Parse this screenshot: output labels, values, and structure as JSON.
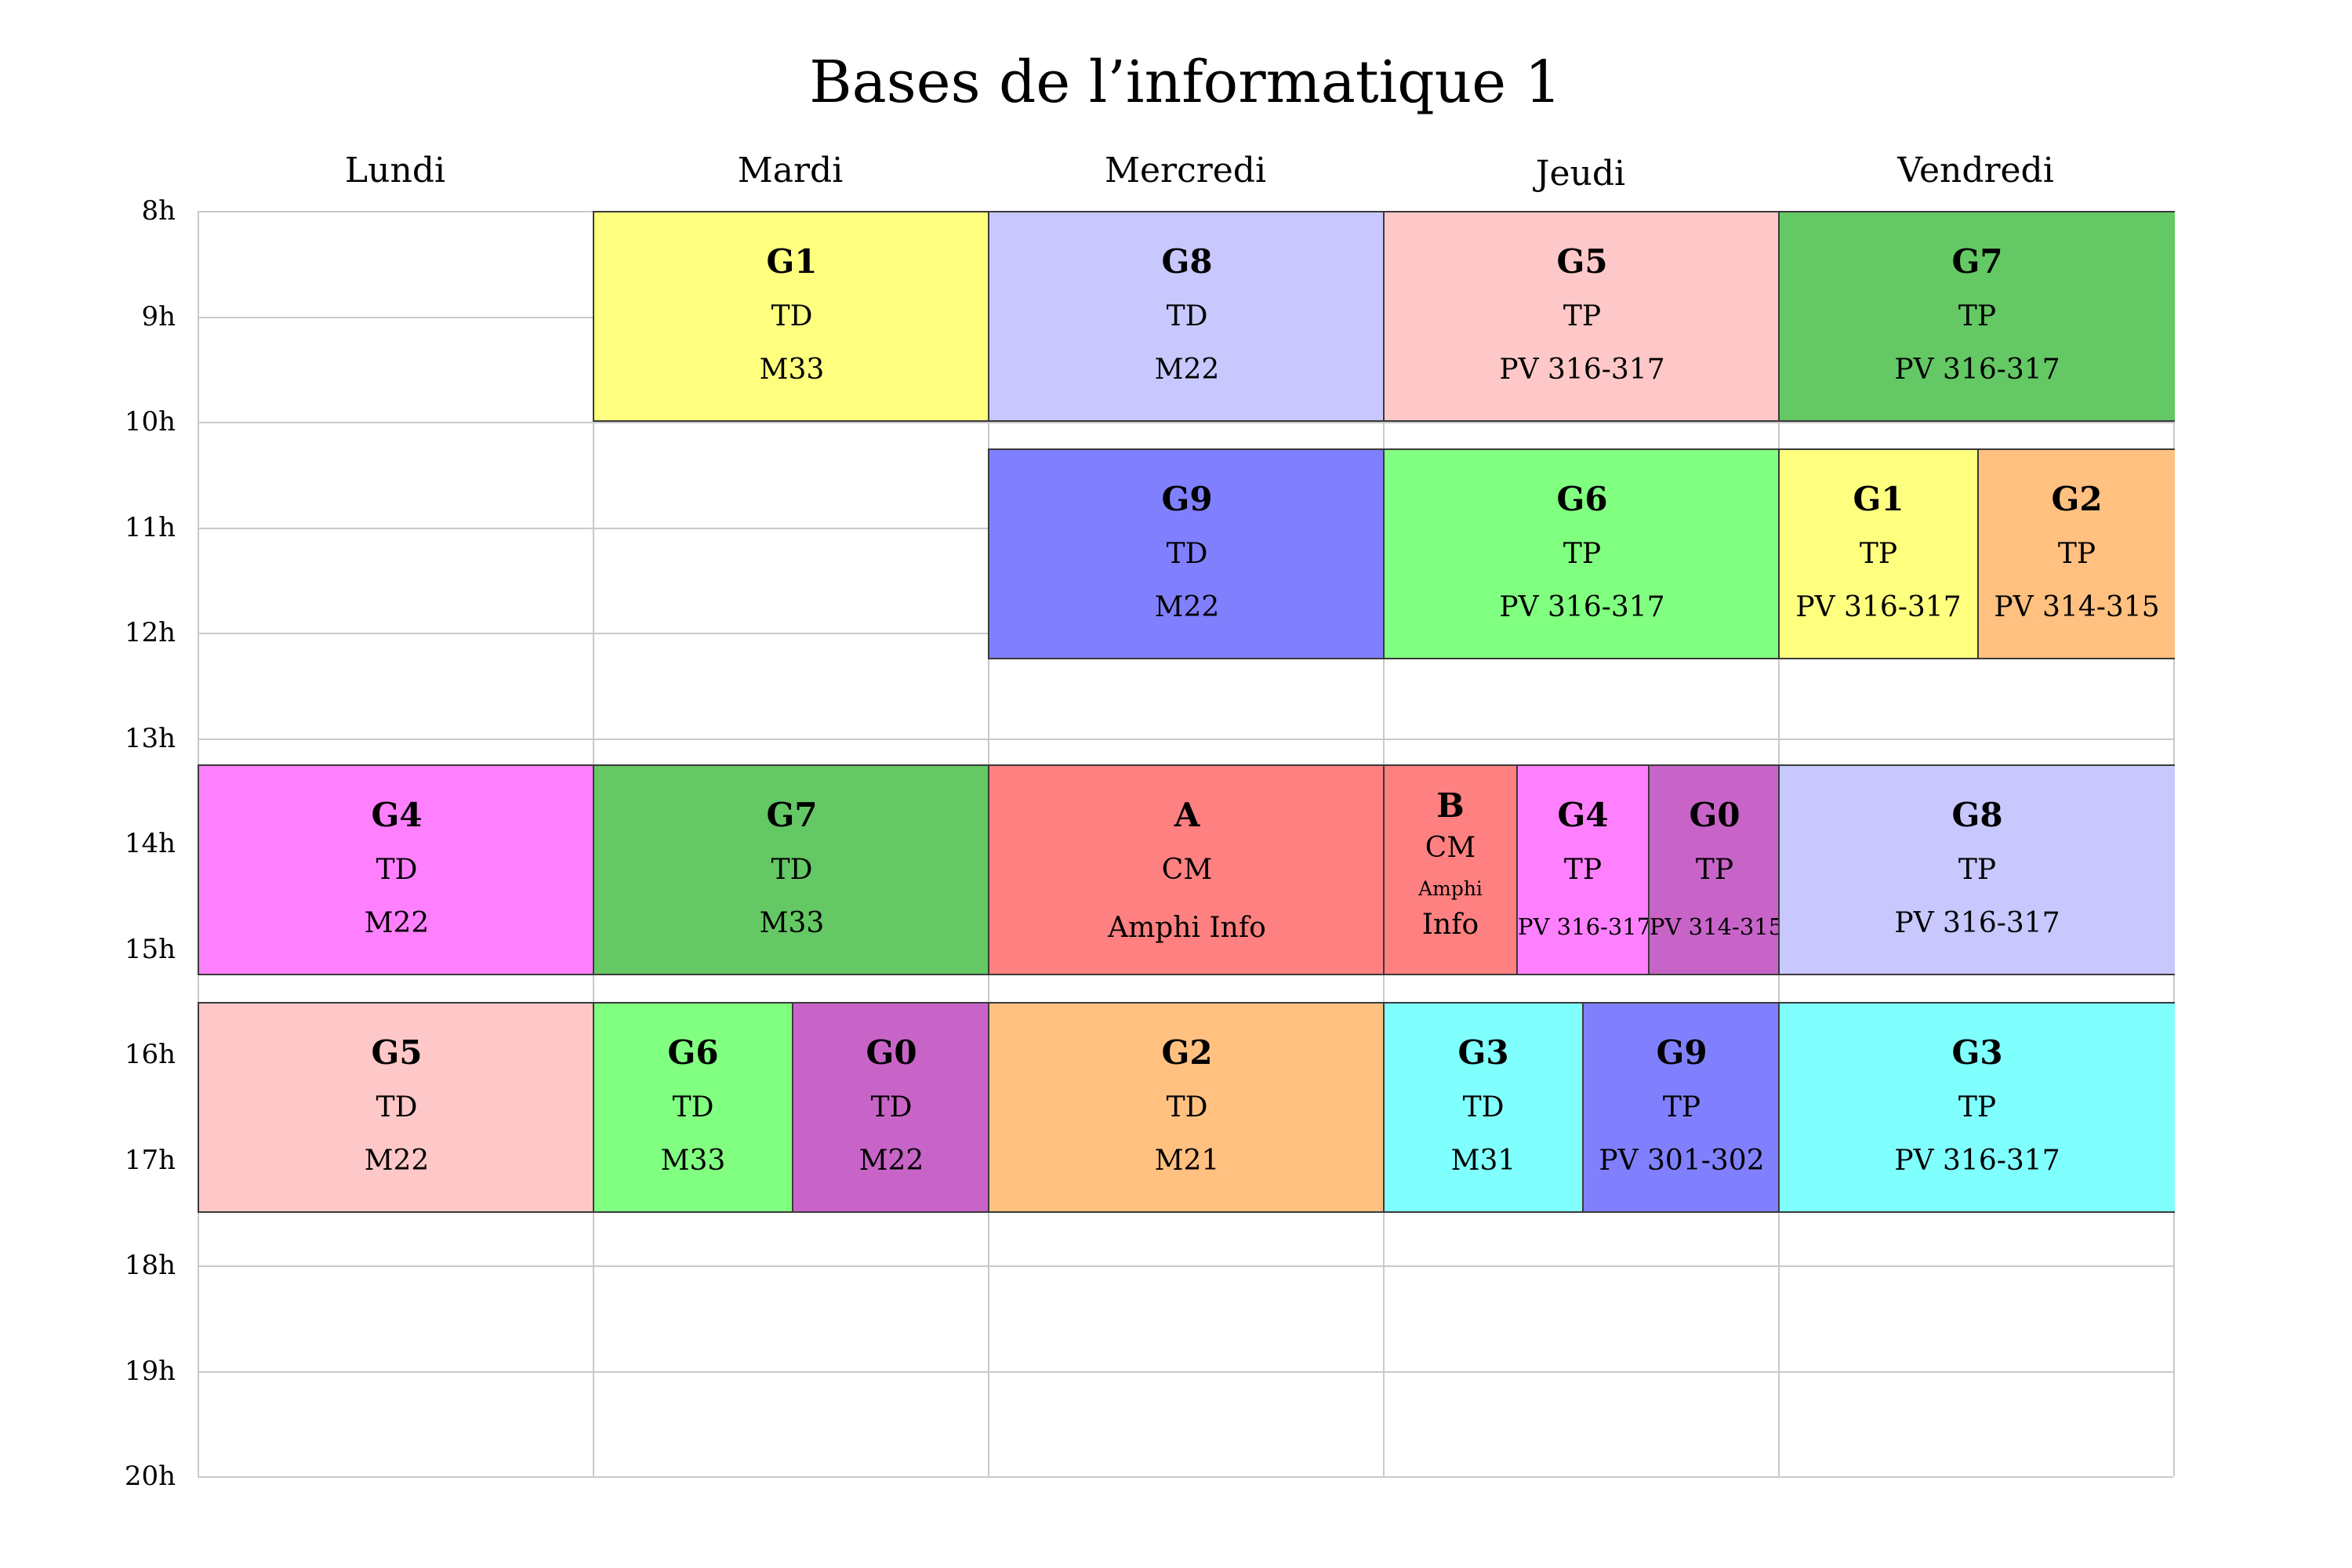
{
  "title": "Bases de l’informatique 1",
  "days": [
    "Lundi",
    "Mardi",
    "Mercredi",
    "Jeudi",
    "Vendredi"
  ],
  "hours": [
    "8h",
    "9h",
    "10h",
    "11h",
    "12h",
    "13h",
    "14h",
    "15h",
    "16h",
    "17h",
    "18h",
    "19h",
    "20h"
  ],
  "blocks": [
    {
      "day": 1,
      "start": 8,
      "end": 10,
      "cells": [
        {
          "group": "G1",
          "kind": "TD",
          "room": "M33",
          "color": "#ffff7f"
        }
      ]
    },
    {
      "day": 2,
      "start": 8,
      "end": 10,
      "cells": [
        {
          "group": "G8",
          "kind": "TD",
          "room": "M22",
          "color": "#c8c8ff"
        }
      ]
    },
    {
      "day": 3,
      "start": 8,
      "end": 10,
      "cells": [
        {
          "group": "G5",
          "kind": "TP",
          "room": "PV 316-317",
          "color": "#ffc8c8"
        }
      ]
    },
    {
      "day": 4,
      "start": 8,
      "end": 10,
      "cells": [
        {
          "group": "G7",
          "kind": "TP",
          "room": "PV 316-317",
          "color": "#64c864"
        }
      ]
    },
    {
      "day": 2,
      "start": 10.25,
      "end": 12.25,
      "cells": [
        {
          "group": "G9",
          "kind": "TD",
          "room": "M22",
          "color": "#8080ff"
        }
      ]
    },
    {
      "day": 3,
      "start": 10.25,
      "end": 12.25,
      "cells": [
        {
          "group": "G6",
          "kind": "TP",
          "room": "PV 316-317",
          "color": "#80ff80"
        }
      ]
    },
    {
      "day": 4,
      "start": 10.25,
      "end": 12.25,
      "cells": [
        {
          "group": "G1",
          "kind": "TP",
          "room": "PV 316-317",
          "color": "#ffff7f"
        },
        {
          "group": "G2",
          "kind": "TP",
          "room": "PV 314-315",
          "color": "#ffc080"
        }
      ]
    },
    {
      "day": 0,
      "start": 13.25,
      "end": 15.25,
      "cells": [
        {
          "group": "G4",
          "kind": "TD",
          "room": "M22",
          "color": "#ff80ff"
        }
      ]
    },
    {
      "day": 1,
      "start": 13.25,
      "end": 15.25,
      "cells": [
        {
          "group": "G7",
          "kind": "TD",
          "room": "M33",
          "color": "#64c864"
        }
      ]
    },
    {
      "day": 2,
      "start": 13.25,
      "end": 15.25,
      "cells": [
        {
          "group": "A",
          "kind": "CM",
          "room": "Amphi Info",
          "color": "#ff8080"
        }
      ]
    },
    {
      "day": 3,
      "start": 13.25,
      "end": 15.25,
      "cells": [
        {
          "group": "B",
          "kind": "CM",
          "room": "Amphi",
          "room2": "Info",
          "color": "#ff8080"
        },
        {
          "group": "G4",
          "kind": "TP",
          "room": "PV 316-317",
          "color": "#ff80ff"
        },
        {
          "group": "G0",
          "kind": "TP",
          "room": "PV 314-315",
          "color": "#c864c8"
        }
      ]
    },
    {
      "day": 4,
      "start": 13.25,
      "end": 15.25,
      "cells": [
        {
          "group": "G8",
          "kind": "TP",
          "room": "PV 316-317",
          "color": "#c8c8ff"
        }
      ]
    },
    {
      "day": 0,
      "start": 15.5,
      "end": 17.5,
      "cells": [
        {
          "group": "G5",
          "kind": "TD",
          "room": "M22",
          "color": "#ffc8c8"
        }
      ]
    },
    {
      "day": 1,
      "start": 15.5,
      "end": 17.5,
      "cells": [
        {
          "group": "G6",
          "kind": "TD",
          "room": "M33",
          "color": "#80ff80"
        },
        {
          "group": "G0",
          "kind": "TD",
          "room": "M22",
          "color": "#c864c8"
        }
      ]
    },
    {
      "day": 2,
      "start": 15.5,
      "end": 17.5,
      "cells": [
        {
          "group": "G2",
          "kind": "TD",
          "room": "M21",
          "color": "#ffc080"
        }
      ]
    },
    {
      "day": 3,
      "start": 15.5,
      "end": 17.5,
      "cells": [
        {
          "group": "G3",
          "kind": "TD",
          "room": "M31",
          "color": "#80ffff"
        },
        {
          "group": "G9",
          "kind": "TP",
          "room": "PV 301-302",
          "color": "#8080ff"
        }
      ]
    },
    {
      "day": 4,
      "start": 15.5,
      "end": 17.5,
      "cells": [
        {
          "group": "G3",
          "kind": "TP",
          "room": "PV 316-317",
          "color": "#80ffff"
        }
      ]
    }
  ]
}
